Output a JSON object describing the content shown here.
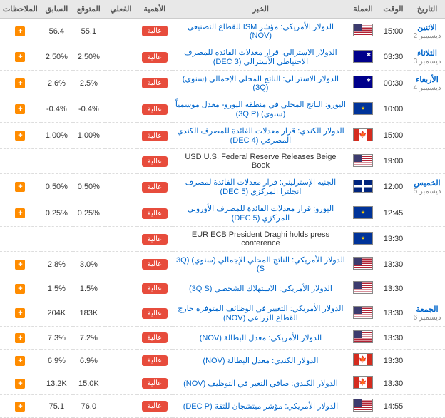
{
  "headers": {
    "date": "التاريخ",
    "time": "الوقت",
    "currency": "العملة",
    "news": "الخبر",
    "importance": "الأهمية",
    "actual": "الفعلي",
    "forecast": "المتوقع",
    "previous": "السابق",
    "notes": "الملاحظات"
  },
  "importance_label": "عالية",
  "plus": "+",
  "rows": [
    {
      "day": "الاثنين",
      "sub": "ديسمبر 2",
      "time": "15:00",
      "flag": "us",
      "news": "الدولار الأمريكي: مؤشر ISM للقطاع التصنيعي (NOV)",
      "link": true,
      "actual": "",
      "forecast": "55.1",
      "previous": "56.4",
      "badge": true,
      "plus": true
    },
    {
      "day": "الثلاثاء",
      "sub": "ديسمبر 3",
      "time": "03:30",
      "flag": "au",
      "news": "الدولار الاسترالي: قرار معدلات الفائدة للمصرف الاحتياطي الأسترالي (DEC 3)",
      "link": true,
      "actual": "",
      "forecast": "2.50%",
      "previous": "2.50%",
      "badge": true,
      "plus": true
    },
    {
      "day": "الأربعاء",
      "sub": "ديسمبر 4",
      "time": "00:30",
      "flag": "au",
      "news": "الدولار الاسترالي: الناتج المحلي الإجمالي (سنوي) (3Q)",
      "link": true,
      "actual": "",
      "forecast": "2.5%",
      "previous": "2.6%",
      "badge": true,
      "plus": true
    },
    {
      "day": "",
      "sub": "",
      "time": "10:00",
      "flag": "eu",
      "news": "اليورو: الناتج المحلي في منطقة اليورو- معدل موسمياً (سنوي) (3Q P)",
      "link": true,
      "actual": "",
      "forecast": "-0.4%",
      "previous": "-0.4%",
      "badge": true,
      "plus": true
    },
    {
      "day": "",
      "sub": "",
      "time": "15:00",
      "flag": "ca",
      "news": "الدولار الكندي: قرار معدلات الفائدة للمصرف الكندي المصرفي (DEC 4)",
      "link": true,
      "actual": "",
      "forecast": "1.00%",
      "previous": "1.00%",
      "badge": true,
      "plus": true
    },
    {
      "day": "",
      "sub": "",
      "time": "19:00",
      "flag": "us",
      "news": "USD U.S. Federal Reserve Releases Beige Book",
      "link": false,
      "actual": "",
      "forecast": "",
      "previous": "",
      "badge": true,
      "plus": false
    },
    {
      "day": "الخميس",
      "sub": "ديسمبر 5",
      "time": "12:00",
      "flag": "gb",
      "news": "الجنيه الإسترليني: قرار معدلات الفائدة لمصرف انجلترا المركزي (DEC 5)",
      "link": true,
      "actual": "",
      "forecast": "0.50%",
      "previous": "0.50%",
      "badge": true,
      "plus": true
    },
    {
      "day": "",
      "sub": "",
      "time": "12:45",
      "flag": "eu",
      "news": "اليورو: قرار معدلات الفائدة للمصرف الأوروبي المركزي (DEC 5)",
      "link": true,
      "actual": "",
      "forecast": "0.25%",
      "previous": "0.25%",
      "badge": true,
      "plus": true
    },
    {
      "day": "",
      "sub": "",
      "time": "13:30",
      "flag": "eu",
      "news": "EUR ECB President Draghi holds press conference",
      "link": false,
      "actual": "",
      "forecast": "",
      "previous": "",
      "badge": true,
      "plus": false
    },
    {
      "day": "",
      "sub": "",
      "time": "13:30",
      "flag": "us",
      "news": "الدولار الأمريكي: الناتج المحلي الإجمالي (سنوي) (3Q S)",
      "link": true,
      "actual": "",
      "forecast": "3.0%",
      "previous": "2.8%",
      "badge": true,
      "plus": true
    },
    {
      "day": "",
      "sub": "",
      "time": "13:30",
      "flag": "us",
      "news": "الدولار الأمريكي: الاستهلاك الشخصي (3Q S)",
      "link": true,
      "actual": "",
      "forecast": "1.5%",
      "previous": "1.5%",
      "badge": true,
      "plus": true
    },
    {
      "day": "الجمعة",
      "sub": "ديسمبر 6",
      "time": "13:30",
      "flag": "us",
      "news": "الدولار الأمريكي: التغيير في الوظائف المتوفرة خارج القطاع الزراعي (NOV)",
      "link": true,
      "actual": "",
      "forecast": "183K",
      "previous": "204K",
      "badge": true,
      "plus": true
    },
    {
      "day": "",
      "sub": "",
      "time": "13:30",
      "flag": "us",
      "news": "الدولار الأمريكي: معدل البطالة (NOV)",
      "link": true,
      "actual": "",
      "forecast": "7.2%",
      "previous": "7.3%",
      "badge": true,
      "plus": true
    },
    {
      "day": "",
      "sub": "",
      "time": "13:30",
      "flag": "ca",
      "news": "الدولار الكندي: معدل البطالة (NOV)",
      "link": true,
      "actual": "",
      "forecast": "6.9%",
      "previous": "6.9%",
      "badge": true,
      "plus": true
    },
    {
      "day": "",
      "sub": "",
      "time": "13:30",
      "flag": "ca",
      "news": "الدولار الكندي: صافي التغير في التوظيف (NOV)",
      "link": true,
      "actual": "",
      "forecast": "15.0K",
      "previous": "13.2K",
      "badge": true,
      "plus": true
    },
    {
      "day": "",
      "sub": "",
      "time": "14:55",
      "flag": "us",
      "news": "الدولار الأمريكي: مؤشر ميتشجان للثقة (DEC P)",
      "link": true,
      "actual": "",
      "forecast": "76.0",
      "previous": "75.1",
      "badge": true,
      "plus": true
    }
  ]
}
